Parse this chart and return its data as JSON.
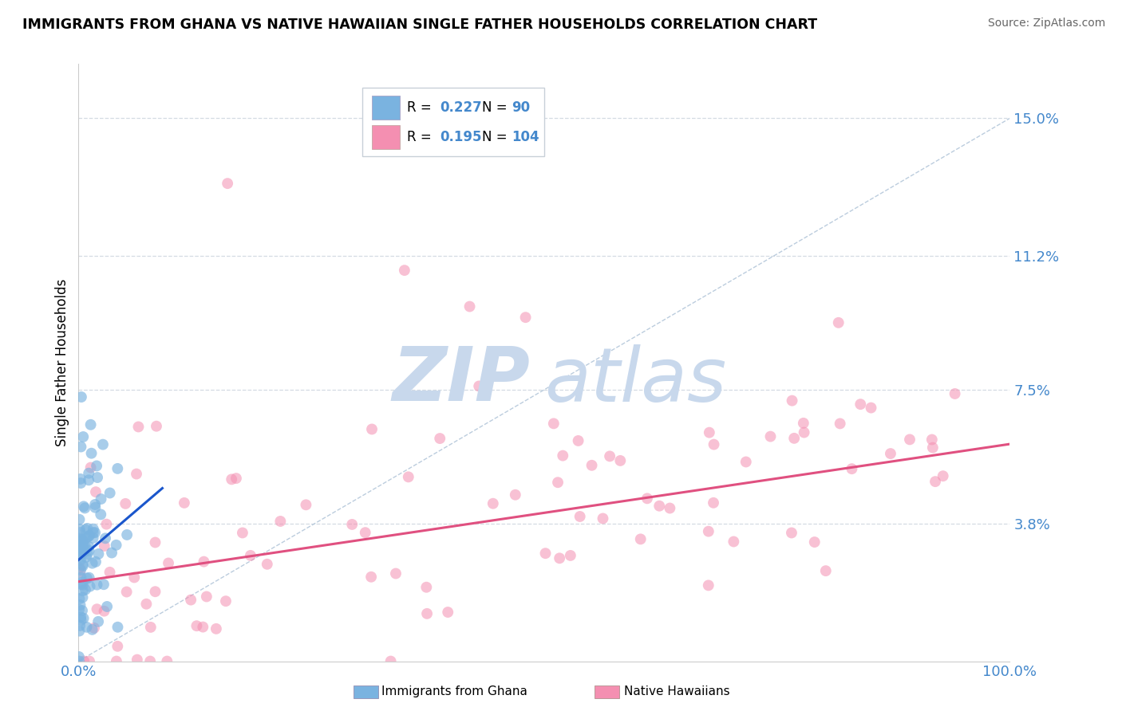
{
  "title": "IMMIGRANTS FROM GHANA VS NATIVE HAWAIIAN SINGLE FATHER HOUSEHOLDS CORRELATION CHART",
  "source": "Source: ZipAtlas.com",
  "ylabel": "Single Father Households",
  "xlabel": "",
  "x_min": 0.0,
  "x_max": 100.0,
  "y_min": 0.0,
  "y_max": 16.5,
  "y_ticks": [
    3.8,
    7.5,
    11.2,
    15.0
  ],
  "y_tick_labels": [
    "3.8%",
    "7.5%",
    "11.2%",
    "15.0%"
  ],
  "x_ticks": [
    0.0,
    100.0
  ],
  "x_tick_labels": [
    "0.0%",
    "100.0%"
  ],
  "r_values": [
    0.227,
    0.195
  ],
  "n_values": [
    90,
    104
  ],
  "blue_color": "#7ab3e0",
  "pink_color": "#f48fb1",
  "trend_blue_color": "#1a56cc",
  "trend_pink_color": "#e05080",
  "diag_color": "#b0c4d8",
  "watermark_zip_color": "#c8d8ec",
  "watermark_atlas_color": "#c8d8ec",
  "background_color": "#ffffff",
  "grid_color": "#d0d8e0",
  "tick_label_color": "#4488cc",
  "legend_border_color": "#c8d0d8",
  "blue_slope": 0.22,
  "blue_intercept": 2.8,
  "blue_x_end": 9.0,
  "pink_slope": 0.038,
  "pink_intercept": 2.2
}
